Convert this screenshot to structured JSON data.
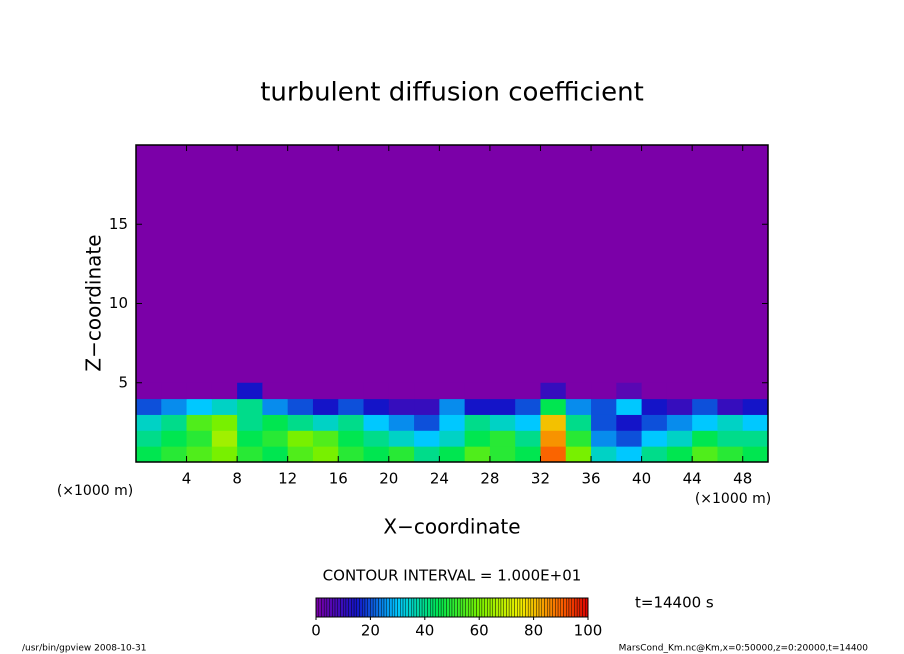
{
  "chart_data": {
    "type": "heatmap",
    "title": "turbulent diffusion coefficient",
    "xlabel": "X−coordinate",
    "ylabel": "Z−coordinate",
    "x_unit": "(×1000 m)",
    "y_unit": "(×1000 m)",
    "xlim": [
      0,
      50
    ],
    "ylim": [
      0,
      20
    ],
    "xticks": [
      4,
      8,
      12,
      16,
      20,
      24,
      28,
      32,
      36,
      40,
      44,
      48
    ],
    "yticks": [
      5,
      10,
      15
    ],
    "x": [
      1,
      3,
      5,
      7,
      9,
      11,
      13,
      15,
      17,
      19,
      21,
      23,
      25,
      27,
      29,
      31,
      33,
      35,
      37,
      39,
      41,
      43,
      45,
      47,
      49
    ],
    "z": [
      0.5,
      1.5,
      2.5,
      3.5,
      4.5
    ],
    "values": [
      [
        45,
        50,
        55,
        60,
        50,
        45,
        55,
        60,
        50,
        45,
        50,
        40,
        45,
        55,
        50,
        45,
        90,
        60,
        35,
        30,
        40,
        45,
        55,
        50,
        45
      ],
      [
        40,
        45,
        50,
        65,
        45,
        50,
        60,
        55,
        45,
        40,
        35,
        30,
        35,
        45,
        50,
        40,
        85,
        50,
        25,
        20,
        30,
        35,
        45,
        40,
        40
      ],
      [
        35,
        40,
        55,
        60,
        40,
        45,
        40,
        35,
        40,
        30,
        25,
        20,
        30,
        40,
        35,
        30,
        80,
        40,
        20,
        15,
        20,
        25,
        30,
        35,
        30
      ],
      [
        20,
        25,
        30,
        35,
        40,
        25,
        20,
        15,
        20,
        15,
        10,
        10,
        25,
        15,
        15,
        20,
        45,
        25,
        20,
        30,
        15,
        10,
        20,
        10,
        15
      ],
      [
        0,
        0,
        0,
        0,
        15,
        0,
        0,
        0,
        0,
        0,
        0,
        0,
        0,
        0,
        0,
        0,
        10,
        0,
        0,
        5,
        0,
        0,
        0,
        0,
        0
      ]
    ],
    "contour_interval": "CONTOUR INTERVAL = 1.000E+01",
    "time_label": "t=14400 s",
    "colorbar": {
      "lim": [
        0,
        100
      ],
      "ticks": [
        0,
        20,
        40,
        60,
        80,
        100
      ]
    },
    "footer_left": "/usr/bin/gpview  2008-10-31",
    "footer_right": "MarsCond_Km.nc@Km,x=0:50000,z=0:20000,t=14400"
  }
}
